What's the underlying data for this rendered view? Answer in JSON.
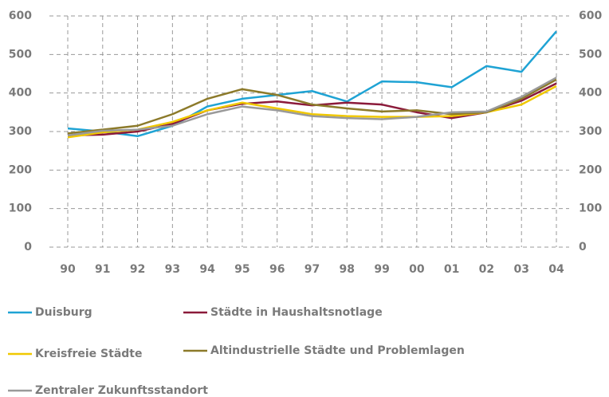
{
  "chart_data": {
    "type": "line",
    "categories": [
      "90",
      "91",
      "92",
      "93",
      "94",
      "95",
      "96",
      "97",
      "98",
      "99",
      "00",
      "01",
      "02",
      "03",
      "04"
    ],
    "series": [
      {
        "name": "Duisburg",
        "color": "#1fa3d4",
        "values": [
          308,
          300,
          288,
          315,
          365,
          385,
          395,
          405,
          378,
          430,
          428,
          415,
          470,
          455,
          560
        ]
      },
      {
        "name": "Städte in Haushaltsnotlage",
        "color": "#8b1a3a",
        "values": [
          290,
          292,
          300,
          320,
          355,
          372,
          378,
          368,
          375,
          370,
          350,
          335,
          350,
          380,
          425
        ]
      },
      {
        "name": "Kreisfreie Städte",
        "color": "#f0c800",
        "values": [
          285,
          298,
          305,
          325,
          355,
          375,
          360,
          345,
          340,
          338,
          338,
          340,
          350,
          370,
          418
        ]
      },
      {
        "name": "Altindustrielle Städte und Problemlagen",
        "color": "#8c7a2a",
        "values": [
          295,
          305,
          315,
          345,
          385,
          410,
          395,
          370,
          360,
          352,
          355,
          345,
          350,
          385,
          435
        ]
      },
      {
        "name": "Zentraler Zukunftsstandort",
        "color": "#9a9a9a",
        "values": [
          290,
          302,
          305,
          315,
          345,
          365,
          355,
          340,
          335,
          332,
          338,
          350,
          352,
          390,
          440
        ]
      }
    ],
    "ylim": [
      0,
      600
    ],
    "yticks": [
      0,
      100,
      200,
      300,
      400,
      500,
      600
    ],
    "y2lim": [
      0,
      600
    ],
    "y2ticks": [
      0,
      100,
      200,
      300,
      400,
      500,
      600
    ],
    "grid": true
  }
}
